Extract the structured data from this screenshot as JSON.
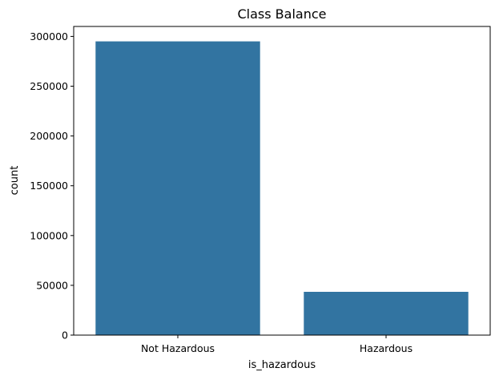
{
  "chart_data": {
    "type": "bar",
    "title": "Class Balance",
    "xlabel": "is_hazardous",
    "ylabel": "count",
    "categories": [
      "Not Hazardous",
      "Hazardous"
    ],
    "values": [
      295000,
      43500
    ],
    "ylim": [
      0,
      310000
    ],
    "yticks": [
      0,
      50000,
      100000,
      150000,
      200000,
      250000,
      300000
    ],
    "grid": false,
    "legend": "none",
    "bar_color": "#3274a1"
  }
}
